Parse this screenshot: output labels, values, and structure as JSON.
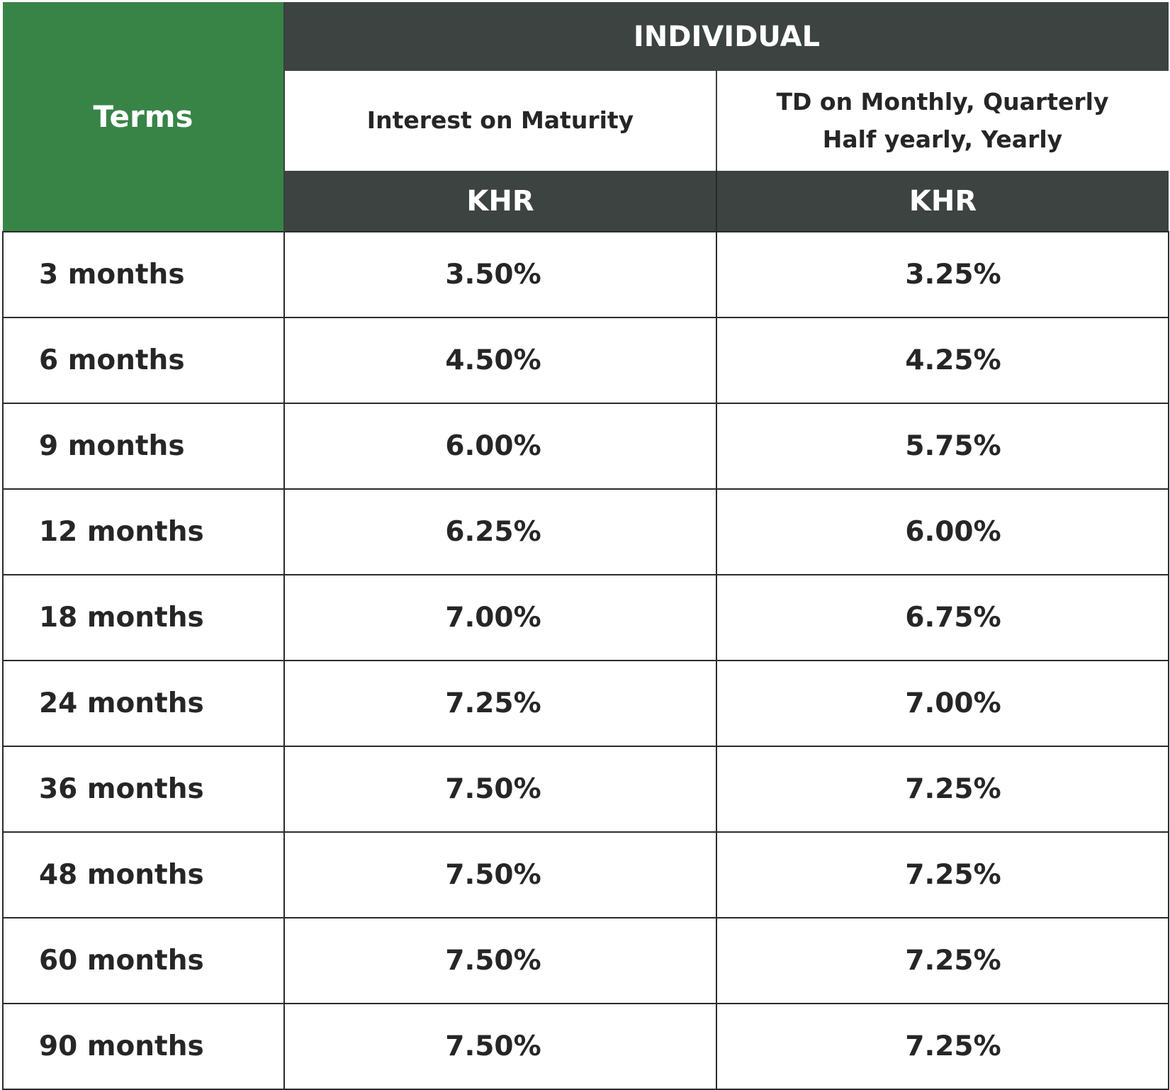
{
  "header": {
    "terms_label": "Terms",
    "group_label": "INDIVIDUAL",
    "col_maturity_label": "Interest on Maturity",
    "col_periodic_label_line1": "TD on Monthly, Quarterly",
    "col_periodic_label_line2": "Half yearly, Yearly",
    "currency_maturity": "KHR",
    "currency_periodic": "KHR"
  },
  "rows": [
    {
      "term": "3 months",
      "maturity": "3.50%",
      "periodic": "3.25%"
    },
    {
      "term": "6 months",
      "maturity": "4.50%",
      "periodic": "4.25%"
    },
    {
      "term": "9 months",
      "maturity": "6.00%",
      "periodic": "5.75%"
    },
    {
      "term": "12 months",
      "maturity": "6.25%",
      "periodic": "6.00%"
    },
    {
      "term": "18 months",
      "maturity": "7.00%",
      "periodic": "6.75%"
    },
    {
      "term": "24 months",
      "maturity": "7.25%",
      "periodic": "7.00%"
    },
    {
      "term": "36 months",
      "maturity": "7.50%",
      "periodic": "7.25%"
    },
    {
      "term": "48 months",
      "maturity": "7.50%",
      "periodic": "7.25%"
    },
    {
      "term": "60 months",
      "maturity": "7.50%",
      "periodic": "7.25%"
    },
    {
      "term": "90 months",
      "maturity": "7.50%",
      "periodic": "7.25%"
    }
  ],
  "colors": {
    "terms_header_bg": "#388447",
    "dark_header_bg": "#3d4341",
    "border": "#2b2b2b",
    "text": "#262626"
  }
}
